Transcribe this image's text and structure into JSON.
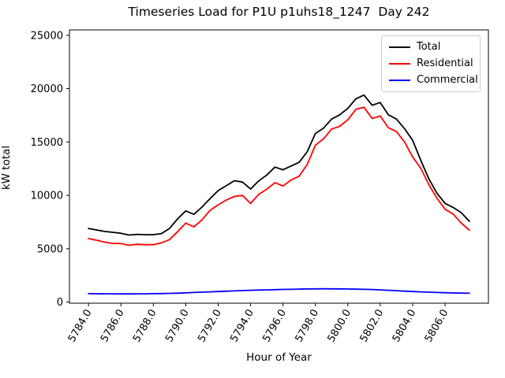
{
  "chart_data": {
    "type": "line",
    "title": "Timeseries Load for P1U p1uhs18_1247  Day 242",
    "xlabel": "Hour of Year",
    "ylabel": "kW total",
    "grid": false,
    "legend_position": "upper right",
    "xlim": [
      5782.825,
      5808.675
    ],
    "ylim": [
      -100,
      25500
    ],
    "xtick_values": [
      5784,
      5786,
      5788,
      5790,
      5792,
      5794,
      5796,
      5798,
      5800,
      5802,
      5804,
      5806
    ],
    "xtick_labels": [
      "5784.0",
      "5786.0",
      "5788.0",
      "5790.0",
      "5792.0",
      "5794.0",
      "5796.0",
      "5798.0",
      "5800.0",
      "5802.0",
      "5804.0",
      "5806.0"
    ],
    "ytick_values": [
      0,
      5000,
      10000,
      15000,
      20000,
      25000
    ],
    "ytick_labels": [
      "0",
      "5000",
      "10000",
      "15000",
      "20000",
      "25000"
    ],
    "x": [
      5784.0,
      5784.5,
      5785.0,
      5785.5,
      5786.0,
      5786.5,
      5787.0,
      5787.5,
      5788.0,
      5788.5,
      5789.0,
      5789.5,
      5790.0,
      5790.5,
      5791.0,
      5791.5,
      5792.0,
      5792.5,
      5793.0,
      5793.5,
      5794.0,
      5794.5,
      5795.0,
      5795.5,
      5796.0,
      5796.5,
      5797.0,
      5797.5,
      5798.0,
      5798.5,
      5799.0,
      5799.5,
      5800.0,
      5800.5,
      5801.0,
      5801.5,
      5802.0,
      5802.5,
      5803.0,
      5803.5,
      5804.0,
      5804.5,
      5805.0,
      5805.5,
      5806.0,
      5806.5,
      5807.0,
      5807.5
    ],
    "series": [
      {
        "name": "Total",
        "color": "#000000",
        "values": [
          6900,
          6760,
          6620,
          6540,
          6450,
          6280,
          6350,
          6320,
          6320,
          6420,
          6900,
          7800,
          8550,
          8220,
          8900,
          9700,
          10450,
          10900,
          11370,
          11250,
          10600,
          11350,
          11900,
          12650,
          12400,
          12750,
          13100,
          14100,
          15800,
          16300,
          17150,
          17550,
          18150,
          19050,
          19400,
          18450,
          18700,
          17550,
          17150,
          16250,
          15150,
          13300,
          11550,
          10200,
          9250,
          8870,
          8380,
          7570
        ]
      },
      {
        "name": "Residential",
        "color": "#ff0000",
        "values": [
          5950,
          5800,
          5620,
          5500,
          5490,
          5320,
          5420,
          5380,
          5380,
          5550,
          5850,
          6600,
          7400,
          7050,
          7700,
          8600,
          9115,
          9555,
          9900,
          9990,
          9240,
          10090,
          10585,
          11195,
          10880,
          11440,
          11800,
          12900,
          14700,
          15300,
          16220,
          16465,
          17080,
          18060,
          18255,
          17200,
          17445,
          16340,
          15975,
          15000,
          13600,
          12545,
          11000,
          9725,
          8695,
          8255,
          7400,
          6740
        ]
      },
      {
        "name": "Commercial",
        "color": "#0000ff",
        "values": [
          790,
          785,
          780,
          775,
          770,
          770,
          775,
          780,
          790,
          800,
          820,
          840,
          870,
          900,
          930,
          960,
          990,
          1020,
          1050,
          1080,
          1110,
          1130,
          1150,
          1170,
          1190,
          1200,
          1220,
          1235,
          1245,
          1250,
          1245,
          1240,
          1230,
          1215,
          1200,
          1180,
          1150,
          1110,
          1070,
          1030,
          990,
          960,
          930,
          900,
          880,
          860,
          845,
          830
        ]
      }
    ]
  }
}
